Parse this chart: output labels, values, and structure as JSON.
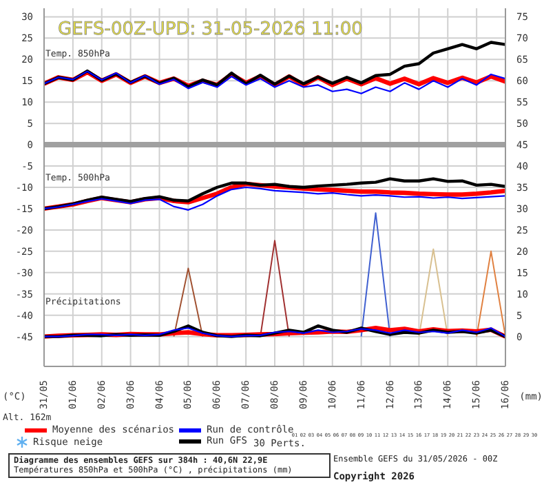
{
  "chart_data": {
    "type": "line",
    "title": "GEFS-00Z-UPD: 31-05-2026  11:00",
    "ylabel": "(°C)",
    "y2label": "(mm)",
    "x": [
      "2026-05-31T00:00",
      "2026-05-31T12:00",
      "2026-06-01T00:00",
      "2026-06-01T12:00",
      "2026-06-02T00:00",
      "2026-06-02T12:00",
      "2026-06-03T00:00",
      "2026-06-03T12:00",
      "2026-06-04T00:00",
      "2026-06-04T12:00",
      "2026-06-05T00:00",
      "2026-06-05T12:00",
      "2026-06-06T00:00",
      "2026-06-06T12:00",
      "2026-06-07T00:00",
      "2026-06-07T12:00",
      "2026-06-08T00:00",
      "2026-06-08T12:00",
      "2026-06-09T00:00",
      "2026-06-09T12:00",
      "2026-06-10T00:00",
      "2026-06-10T12:00",
      "2026-06-11T00:00",
      "2026-06-11T12:00",
      "2026-06-12T00:00",
      "2026-06-12T12:00",
      "2026-06-13T00:00",
      "2026-06-13T12:00",
      "2026-06-14T00:00",
      "2026-06-14T12:00",
      "2026-06-15T00:00",
      "2026-06-15T12:00",
      "2026-06-16T00:00"
    ],
    "xlim": [
      "2026-05-31",
      "2026-06-16"
    ],
    "xticks": [
      {
        "value": "2026-05-31",
        "label": "31/05"
      },
      {
        "value": "2026-06-01",
        "label": "01/06"
      },
      {
        "value": "2026-06-02",
        "label": "02/06"
      },
      {
        "value": "2026-06-03",
        "label": "03/06"
      },
      {
        "value": "2026-06-04",
        "label": "04/06"
      },
      {
        "value": "2026-06-05",
        "label": "05/06"
      },
      {
        "value": "2026-06-06",
        "label": "06/06"
      },
      {
        "value": "2026-06-07",
        "label": "07/06"
      },
      {
        "value": "2026-06-08",
        "label": "08/06"
      },
      {
        "value": "2026-06-09",
        "label": "09/06"
      },
      {
        "value": "2026-06-10",
        "label": "10/06"
      },
      {
        "value": "2026-06-11",
        "label": "11/06"
      },
      {
        "value": "2026-06-12",
        "label": "12/06"
      },
      {
        "value": "2026-06-13",
        "label": "13/06"
      },
      {
        "value": "2026-06-14",
        "label": "14/06"
      },
      {
        "value": "2026-06-15",
        "label": "15/06"
      },
      {
        "value": "2026-06-16",
        "label": "16/06"
      }
    ],
    "ylim": [
      -52,
      32
    ],
    "yticks": [
      -45,
      -40,
      -35,
      -30,
      -25,
      -20,
      -15,
      -10,
      -5,
      0,
      5,
      10,
      15,
      20,
      25,
      30
    ],
    "y2lim": [
      -7,
      77
    ],
    "y2ticks": [
      0,
      5,
      10,
      15,
      20,
      25,
      30,
      35,
      40,
      45,
      50,
      55,
      60,
      65,
      70,
      75
    ],
    "grid": true,
    "legend": "bottom",
    "marker": "none",
    "ref_lines": [
      {
        "axis": "y",
        "value": 0,
        "color": "#a0a0a0"
      }
    ],
    "series": [
      {
        "name": "Moyenne des scénarios",
        "color": "#ff0000",
        "values": [
          14.3,
          15.8,
          15.2,
          17,
          15,
          16.5,
          14.5,
          16,
          14.5,
          15.5,
          13.8,
          15,
          14,
          16.5,
          14.5,
          16,
          14,
          16,
          14,
          15.8,
          14,
          15.5,
          14.2,
          15.6,
          14.3,
          15.5,
          14.2,
          15.6,
          14.5,
          15.7,
          14.6,
          16,
          14.8
        ]
      },
      {
        "name": "Run de contrôle",
        "color": "#0000ff",
        "values": [
          14.3,
          15.8,
          15.3,
          17.2,
          15.2,
          16.8,
          14.5,
          16.2,
          14.2,
          15.3,
          13.2,
          14.6,
          13.5,
          16,
          14,
          15.5,
          13.5,
          15,
          13.5,
          14,
          12.5,
          13,
          12,
          13.5,
          12.5,
          14.5,
          13,
          15,
          13.5,
          15.5,
          14,
          16.5,
          15.5
        ]
      },
      {
        "name": "Run GFS",
        "color": "#000000",
        "values": [
          14.3,
          15.8,
          15.2,
          17.3,
          15.1,
          16.6,
          14.6,
          16.1,
          14.4,
          15.6,
          13.6,
          15.2,
          14,
          16.8,
          14.3,
          16.3,
          14.2,
          16.1,
          14.3,
          15.9,
          14.4,
          15.8,
          14.5,
          16.2,
          16.5,
          18.4,
          19,
          21.5,
          22.5,
          23.5,
          22.5,
          24,
          23.5
        ]
      },
      {
        "color": "#ff0000",
        "values": [
          -15,
          -14.5,
          -14,
          -13.2,
          -12.5,
          -13,
          -13.5,
          -12.8,
          -12.5,
          -13.2,
          -13.5,
          -12.5,
          -11.5,
          -10,
          -9.2,
          -9.5,
          -9.8,
          -10,
          -10.3,
          -10.5,
          -10.6,
          -10.8,
          -11,
          -11,
          -11.2,
          -11.3,
          -11.5,
          -11.6,
          -11.7,
          -11.7,
          -11.5,
          -11.2,
          -10.8
        ]
      },
      {
        "color": "#0000ff",
        "values": [
          -15,
          -14.6,
          -14,
          -13.3,
          -12.7,
          -13.2,
          -13.8,
          -13,
          -12.8,
          -14.5,
          -15.3,
          -14,
          -12,
          -10.5,
          -10,
          -10.3,
          -10.8,
          -11,
          -11.2,
          -11.5,
          -11.3,
          -11.7,
          -12,
          -11.8,
          -12,
          -12.3,
          -12.2,
          -12.5,
          -12.3,
          -12.6,
          -12.4,
          -12.2,
          -12
        ]
      },
      {
        "color": "#000000",
        "values": [
          -15,
          -14.5,
          -13.9,
          -13,
          -12.3,
          -12.8,
          -13.3,
          -12.6,
          -12.2,
          -13,
          -13.2,
          -11.5,
          -10,
          -9,
          -9,
          -9.5,
          -9.3,
          -9.8,
          -10,
          -9.7,
          -9.5,
          -9.3,
          -9,
          -8.8,
          -8,
          -8.5,
          -8.5,
          -8,
          -8.6,
          -8.5,
          -9.5,
          -9.3,
          -9.8
        ]
      },
      {
        "color": "#ff0000",
        "axis": "y2",
        "values": [
          0,
          0.2,
          0.3,
          0.4,
          0.5,
          0.4,
          0.6,
          0.5,
          0.5,
          0.8,
          1,
          0.6,
          0.3,
          0.3,
          0.4,
          0.5,
          0.6,
          0.8,
          0.9,
          1,
          1.2,
          1.1,
          1.5,
          2,
          1.5,
          1.8,
          1.2,
          1.7,
          1.3,
          1.4,
          1.2,
          1.6,
          0
        ]
      },
      {
        "color": "#0000ff",
        "axis": "y2",
        "values": [
          0,
          0,
          0.2,
          0.5,
          0.5,
          0.3,
          0.5,
          0.3,
          0.5,
          1.5,
          2,
          0.8,
          0.2,
          0,
          0.2,
          0.3,
          1,
          1.2,
          0.8,
          1.5,
          1,
          1.2,
          1.8,
          1.5,
          0.8,
          1.5,
          1,
          1.2,
          0.8,
          1.5,
          1,
          2,
          0
        ]
      },
      {
        "color": "#000000",
        "axis": "y2",
        "values": [
          0,
          0,
          0.3,
          0.3,
          0.2,
          0.5,
          0.3,
          0.4,
          0.3,
          1.2,
          2.5,
          1,
          0.2,
          0,
          0.3,
          0.2,
          0.8,
          1.5,
          1,
          2.5,
          1.5,
          1,
          2,
          1.2,
          0.5,
          1,
          0.8,
          1.5,
          1,
          1.2,
          0.8,
          1.5,
          0
        ]
      },
      {
        "color": "#a05030",
        "axis": "y2",
        "x": [
          "2026-06-04T12:00",
          "2026-06-05T00:00",
          "2026-06-05T12:00"
        ],
        "values": [
          0,
          16,
          0
        ]
      },
      {
        "color": "#a03030",
        "axis": "y2",
        "x": [
          "2026-06-07T12:00",
          "2026-06-08T00:00",
          "2026-06-08T12:00"
        ],
        "values": [
          0,
          22.5,
          0
        ]
      },
      {
        "color": "#4060d0",
        "axis": "y2",
        "x": [
          "2026-06-11T00:00",
          "2026-06-11T12:00",
          "2026-06-12T00:00"
        ],
        "values": [
          0,
          29,
          0
        ]
      },
      {
        "color": "#d8c090",
        "axis": "y2",
        "x": [
          "2026-06-13T00:00",
          "2026-06-13T12:00",
          "2026-06-14T00:00"
        ],
        "values": [
          0,
          20.5,
          0
        ]
      },
      {
        "color": "#e08040",
        "axis": "y2",
        "x": [
          "2026-06-15T00:00",
          "2026-06-15T12:00",
          "2026-06-16T00:00"
        ],
        "values": [
          0,
          20,
          0
        ]
      }
    ],
    "annotations": [
      "Temp. 850hPa",
      "Temp. 500hPa",
      "Précipitations",
      "Alt. 162m",
      "Risque neige",
      "30 Perts.",
      "01 02 03 04 05 06 07 08 09 10 11 12 13 14 15 16 17 18 19 20 21 22 23 24 25 26 27 28 29 30",
      "Diagramme des ensembles GEFS sur 384h : 40,6N 22,9E",
      "Températures 850hPa et 500hPa (°C) , précipitations (mm)",
      "Ensemble GEFS du 31/05/2026 - 00Z",
      "Copyright 2026"
    ]
  }
}
